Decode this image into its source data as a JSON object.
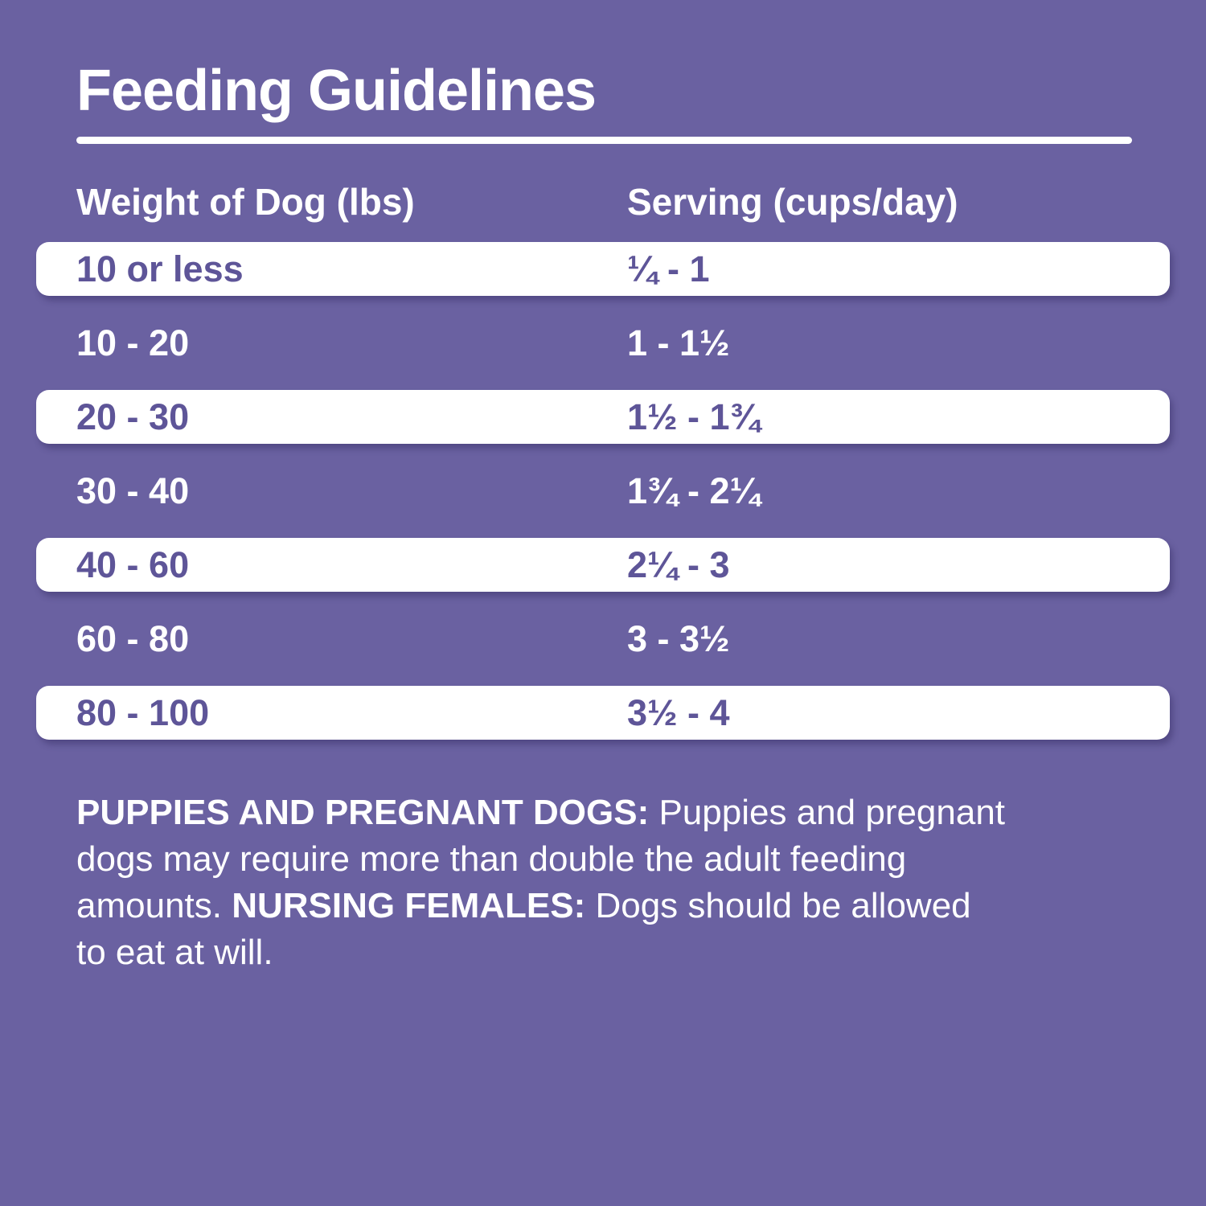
{
  "page": {
    "title": "Feeding Guidelines",
    "background_color": "#6a61a1",
    "row_highlight_color": "#ffffff",
    "row_text_color": "#5e5598",
    "text_color": "#ffffff"
  },
  "table": {
    "columns": [
      "Weight of Dog (lbs)",
      "Serving (cups/day)"
    ],
    "rows": [
      {
        "weight": "10 or less",
        "serving": "¼ - 1"
      },
      {
        "weight": "10 - 20",
        "serving": "1 - 1½"
      },
      {
        "weight": "20 - 30",
        "serving": "1½ - 1¾"
      },
      {
        "weight": "30 - 40",
        "serving": "1¾ - 2¼"
      },
      {
        "weight": "40 - 60",
        "serving": "2¼ - 3"
      },
      {
        "weight": "60 - 80",
        "serving": "3 - 3½"
      },
      {
        "weight": "80 - 100",
        "serving": "3½ - 4"
      }
    ]
  },
  "note": {
    "line1_bold": "PUPPIES AND PREGNANT DOGS:",
    "line1_rest": " Puppies and pregnant",
    "line2": "dogs may require more than double the adult feeding",
    "line3_start": "amounts. ",
    "line3_bold": "NURSING FEMALES:",
    "line3_rest": " Dogs should be allowed",
    "line4": "to eat at will."
  },
  "chart_data": {
    "type": "table",
    "title": "Feeding Guidelines",
    "columns": [
      "Weight of Dog (lbs)",
      "Serving (cups/day)"
    ],
    "rows": [
      [
        "10 or less",
        "¼ - 1"
      ],
      [
        "10 - 20",
        "1 - 1½"
      ],
      [
        "20 - 30",
        "1½ - 1¾"
      ],
      [
        "30 - 40",
        "1¾ - 2¼"
      ],
      [
        "40 - 60",
        "2¼ - 3"
      ],
      [
        "60 - 80",
        "3 - 3½"
      ],
      [
        "80 - 100",
        "3½ - 4"
      ]
    ],
    "notes": "PUPPIES AND PREGNANT DOGS: Puppies and pregnant dogs may require more than double the adult feeding amounts. NURSING FEMALES: Dogs should be allowed to eat at will."
  }
}
